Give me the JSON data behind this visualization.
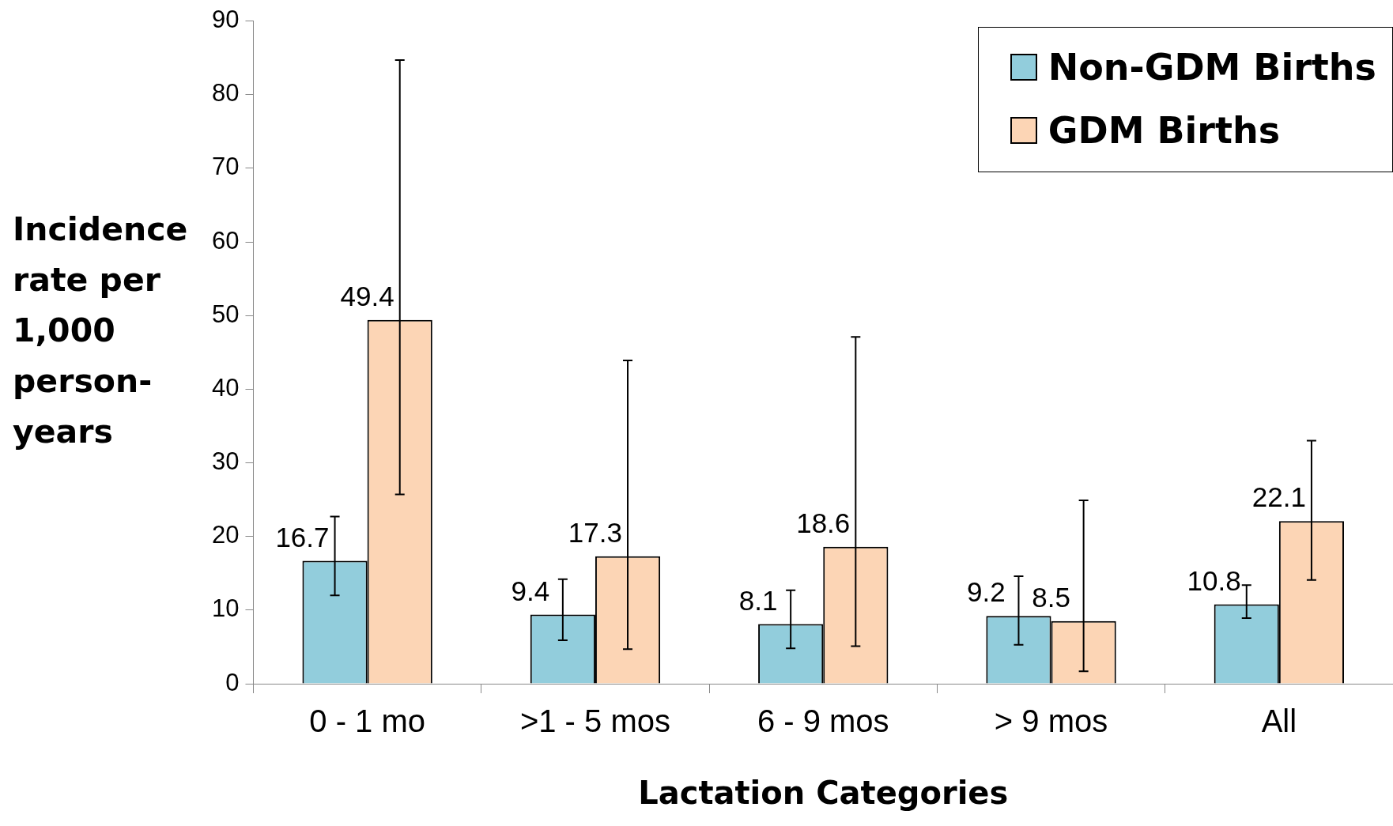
{
  "chart_data": {
    "type": "bar",
    "xlabel": "Lactation Categories",
    "ylabel": "Incidence rate per 1,000 person-years",
    "categories": [
      "0 - 1 mo",
      ">1 - 5 mos",
      "6 - 9 mos",
      "> 9 mos",
      "All"
    ],
    "series": [
      {
        "name": "Non-GDM Births",
        "color": "#92cddc",
        "values": [
          16.7,
          9.4,
          8.1,
          9.2,
          10.8
        ],
        "errors": [
          [
            12.0,
            22.7
          ],
          [
            5.9,
            14.2
          ],
          [
            4.8,
            12.7
          ],
          [
            5.3,
            14.6
          ],
          [
            8.9,
            13.4
          ]
        ]
      },
      {
        "name": "GDM Births",
        "color": "#fcd5b5",
        "values": [
          49.4,
          17.3,
          18.6,
          8.5,
          22.1
        ],
        "errors": [
          [
            25.7,
            84.7
          ],
          [
            4.7,
            43.9
          ],
          [
            5.1,
            47.1
          ],
          [
            1.7,
            24.9
          ],
          [
            14.1,
            33.0
          ]
        ]
      }
    ],
    "ylim": [
      0,
      90
    ],
    "yticks": [
      0,
      10,
      20,
      30,
      40,
      50,
      60,
      70,
      80,
      90
    ],
    "data_labels": true,
    "legend": "top right"
  }
}
